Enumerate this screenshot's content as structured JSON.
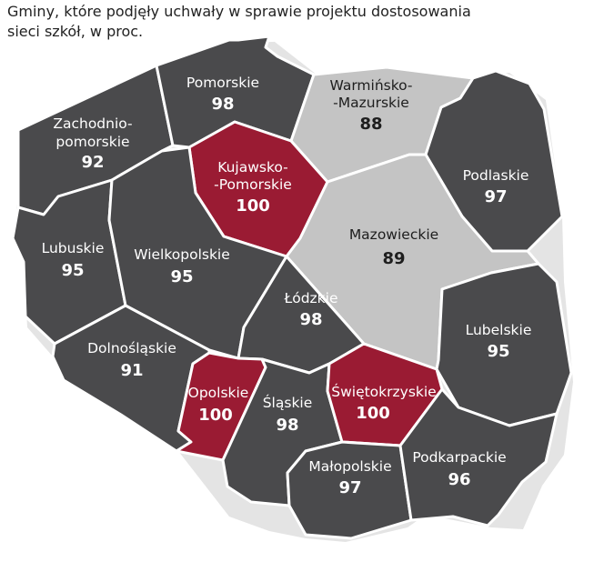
{
  "caption": {
    "line1": "Gminy, które podjęły uchwały w sprawie projektu dostosowania",
    "line2": "sieci szkół, w proc."
  },
  "colors": {
    "dark": "#4a4a4c",
    "light": "#c4c4c4",
    "highlight": "#9a1b33",
    "text_on_dark": "#ffffff",
    "text_on_light": "#1e1e1e"
  },
  "regions": {
    "zachodniopomorskie": {
      "name1": "Zachodnio-",
      "name2": "pomorskie",
      "value": "92",
      "color": "dark"
    },
    "pomorskie": {
      "name": "Pomorskie",
      "value": "98",
      "color": "dark"
    },
    "warminsko_mazurskie": {
      "name1": "Warmińsko-",
      "name2": "-Mazurskie",
      "value": "88",
      "color": "light"
    },
    "kujawsko_pomorskie": {
      "name1": "Kujawsko-",
      "name2": "-Pomorskie",
      "value": "100",
      "color": "highlight"
    },
    "podlaskie": {
      "name": "Podlaskie",
      "value": "97",
      "color": "dark"
    },
    "lubuskie": {
      "name": "Lubuskie",
      "value": "95",
      "color": "dark"
    },
    "wielkopolskie": {
      "name": "Wielkopolskie",
      "value": "95",
      "color": "dark"
    },
    "mazowieckie": {
      "name": "Mazowieckie",
      "value": "89",
      "color": "light"
    },
    "lodzkie": {
      "name": "Łódzkie",
      "value": "98",
      "color": "dark"
    },
    "lubelskie": {
      "name": "Lubelskie",
      "value": "95",
      "color": "dark"
    },
    "dolnoslaskie": {
      "name": "Dolnośląskie",
      "value": "91",
      "color": "dark"
    },
    "opolskie": {
      "name": "Opolskie",
      "value": "100",
      "color": "highlight"
    },
    "slaskie": {
      "name": "Śląskie",
      "value": "98",
      "color": "dark"
    },
    "swietokrzyskie": {
      "name": "Świętokrzyskie",
      "value": "100",
      "color": "highlight"
    },
    "malopolskie": {
      "name": "Małopolskie",
      "value": "97",
      "color": "dark"
    },
    "podkarpackie": {
      "name": "Podkarpackie",
      "value": "96",
      "color": "dark"
    }
  }
}
